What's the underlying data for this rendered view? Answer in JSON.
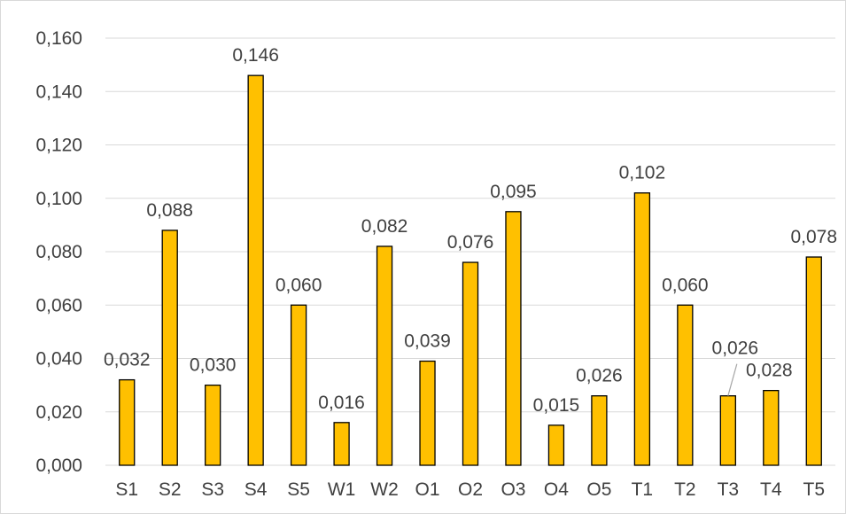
{
  "chart_data": {
    "type": "bar",
    "categories": [
      "S1",
      "S2",
      "S3",
      "S4",
      "S5",
      "W1",
      "W2",
      "O1",
      "O2",
      "O3",
      "O4",
      "O5",
      "T1",
      "T2",
      "T3",
      "T4",
      "T5"
    ],
    "values": [
      0.032,
      0.088,
      0.03,
      0.146,
      0.06,
      0.016,
      0.082,
      0.039,
      0.076,
      0.095,
      0.015,
      0.026,
      0.102,
      0.06,
      0.026,
      0.028,
      0.078
    ],
    "data_labels": [
      "0,032",
      "0,088",
      "0,030",
      "0,146",
      "0,060",
      "0,016",
      "0,082",
      "0,039",
      "0,076",
      "0,095",
      "0,015",
      "0,026",
      "0,102",
      "0,060",
      "0,026",
      "0,028",
      "0,078"
    ],
    "yticks": [
      "0,000",
      "0,020",
      "0,040",
      "0,060",
      "0,080",
      "0,100",
      "0,120",
      "0,140",
      "0,160"
    ],
    "ylim": [
      0,
      0.16
    ],
    "grid": true,
    "legend": "none",
    "colors": {
      "bar_fill": "#FFC000",
      "bar_stroke": "#000000",
      "grid": "#D9D9D9",
      "text": "#404040",
      "leader_line": "#A6A6A6"
    }
  }
}
